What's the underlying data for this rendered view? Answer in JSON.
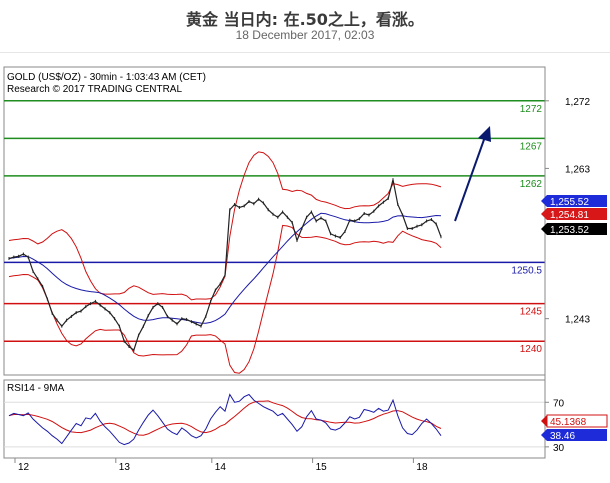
{
  "header": {
    "title": "黄金 当日内: 在.50之上，看涨。",
    "date": "18 December 2017, 02:03"
  },
  "chart_data": [
    {
      "type": "line",
      "chart_info_line1": "GOLD (US$/OZ) - 30min - 1:03:43 AM (CET)",
      "chart_info_line2": "Research © 2017 TRADING CENTRAL",
      "ylim": [
        1235.5,
        1276.5
      ],
      "y_ticks": [
        1243,
        1263,
        1272
      ],
      "y_tick_labels": [
        "1,243",
        "1,263",
        "1,272"
      ],
      "x_tick_labels": [
        "12",
        "13",
        "14",
        "15",
        "18"
      ],
      "horizontal_levels": [
        {
          "value": 1272,
          "label": "1272",
          "color": "#1e8c1e"
        },
        {
          "value": 1267,
          "label": "1267",
          "color": "#1e8c1e"
        },
        {
          "value": 1262,
          "label": "1262",
          "color": "#1e8c1e"
        },
        {
          "value": 1250.5,
          "label": "1250.5",
          "color": "#1a1aa8"
        },
        {
          "value": 1245,
          "label": "1245",
          "color": "#d01010"
        },
        {
          "value": 1240,
          "label": "1240",
          "color": "#d01010"
        }
      ],
      "price_tags": [
        {
          "label": "1,255.52",
          "value": 1255.52,
          "bg": "#1e2bd8",
          "fg": "#ffffff"
        },
        {
          "label": "1,254.81",
          "value": 1254.81,
          "bg": "#d81818",
          "fg": "#ffffff"
        },
        {
          "label": "1,253.52",
          "value": 1253.52,
          "bg": "#000000",
          "fg": "#ffffff"
        }
      ],
      "series": [
        {
          "values": [
            1251.0,
            1251.2,
            1251.3,
            1251.6,
            1251.2,
            1249.3,
            1248.3,
            1247.3,
            1245.6,
            1243.7,
            1242.8,
            1242.0,
            1242.8,
            1243.3,
            1243.8,
            1244.0,
            1244.6,
            1245.0,
            1245.3,
            1244.8,
            1244.3,
            1243.8,
            1243.0,
            1242.0,
            1240.0,
            1239.3,
            1238.8,
            1240.8,
            1242.0,
            1243.4,
            1244.5,
            1245.0,
            1244.5,
            1243.3,
            1242.8,
            1242.3,
            1243.0,
            1242.9,
            1242.6,
            1242.3,
            1242.0,
            1243.3,
            1245.3,
            1246.8,
            1247.6,
            1248.8,
            1257.5,
            1258.2,
            1257.8,
            1258.0,
            1258.6,
            1258.3,
            1258.9,
            1258.4,
            1257.5,
            1256.9,
            1256.5,
            1257.2,
            1256.5,
            1255.8,
            1253.4,
            1255.0,
            1256.5,
            1257.2,
            1256.0,
            1256.4,
            1256.0,
            1254.3,
            1254.0,
            1253.8,
            1254.6,
            1256.1,
            1256.0,
            1256.3,
            1257.0,
            1256.8,
            1257.3,
            1258.0,
            1258.5,
            1259.0,
            1261.5,
            1258.2,
            1256.8,
            1255.0,
            1255.0,
            1255.3,
            1255.5,
            1256.0,
            1256.2,
            1255.6,
            1253.9
          ]
        },
        {
          "values": [
            58.0,
            60.0,
            59.0,
            58.0,
            60.5,
            55.0,
            51.0,
            47.0,
            44.0,
            40.0,
            37.0,
            33.0,
            39.0,
            45.0,
            51.0,
            49.0,
            56.0,
            55.0,
            60.0,
            53.0,
            48.0,
            44.0,
            39.0,
            34.0,
            32.0,
            33.5,
            37.0,
            45.0,
            52.0,
            58.5,
            63.0,
            58.0,
            52.0,
            46.0,
            43.0,
            41.0,
            47.0,
            44.0,
            40.0,
            38.0,
            40.0,
            46.0,
            55.0,
            61.0,
            66.0,
            62.0,
            77.0,
            70.0,
            71.0,
            75.0,
            77.0,
            72.0,
            69.0,
            66.0,
            64.0,
            62.0,
            58.0,
            60.0,
            55.0,
            50.0,
            44.0,
            48.0,
            57.0,
            62.5,
            55.0,
            54.0,
            51.5,
            46.0,
            45.0,
            47.0,
            51.5,
            57.0,
            55.0,
            56.5,
            63.5,
            62.5,
            61.0,
            64.5,
            62.0,
            63.0,
            72.0,
            58.0,
            47.0,
            42.0,
            41.0,
            45.0,
            51.0,
            55.0,
            51.0,
            46.0,
            40.0
          ]
        }
      ],
      "rsi_ylim": [
        20,
        90
      ],
      "rsi_ticks": [
        30,
        70
      ],
      "rsi_title": "RSI14 - 9MA",
      "rsi_tags": [
        {
          "label": "45.1368",
          "value": 45.1368,
          "bg": "#ffffff",
          "fg": "#d01010"
        },
        {
          "label": "38.46",
          "value": 38.46,
          "bg": "#1e2bd8",
          "fg": "#ffffff"
        }
      ]
    }
  ]
}
